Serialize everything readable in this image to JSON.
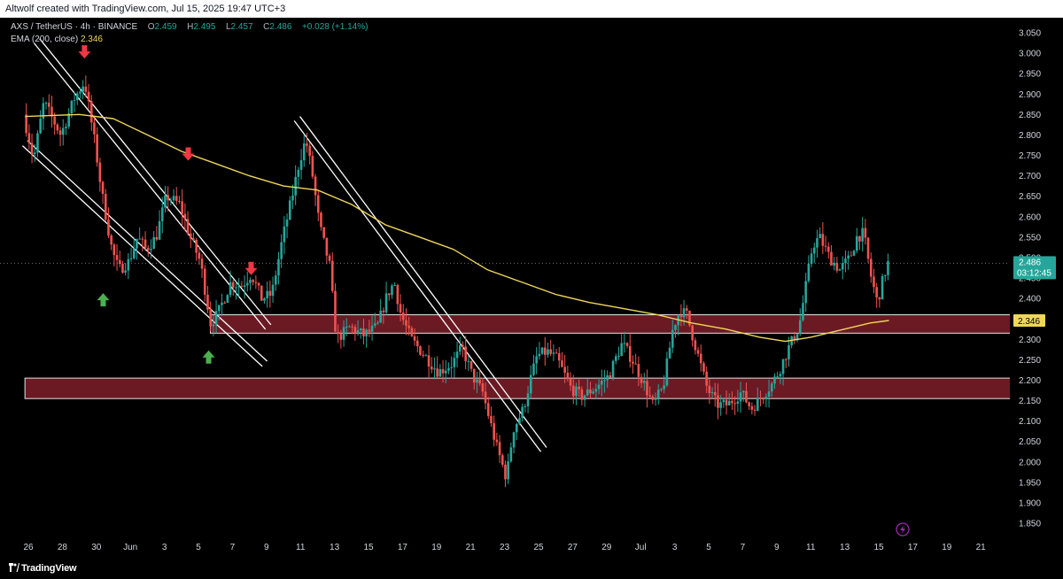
{
  "header": {
    "caption": "Altwolf created with TradingView.com, Jul 15, 2025 19:47 UTC+3"
  },
  "legend": {
    "symbol": "AXS / TetherUS · 4h · BINANCE",
    "o_label": "O",
    "o_value": "2.459",
    "h_label": "H",
    "h_value": "2.495",
    "l_label": "L",
    "l_value": "2.457",
    "c_label": "C",
    "c_value": "2.486",
    "change": "+0.028 (+1.14%)",
    "ema_label": "EMA (200, close)",
    "ema_value": "2.346"
  },
  "price_tag": {
    "price": "2.486",
    "countdown": "03:12:45",
    "color": "#26a69a"
  },
  "ema_tag": {
    "value": "2.346",
    "color": "#f0d75a"
  },
  "footer": {
    "brand": "TradingView"
  },
  "colors": {
    "up": "#26a69a",
    "down": "#ef5350",
    "ema": "#f0d75a",
    "zone": "#6b1a24",
    "arrow_down": "#f23645",
    "arrow_up": "#4caf50"
  },
  "chart_data": {
    "type": "candlestick",
    "symbol": "AXS/USDT",
    "timeframe": "4h",
    "ylim": [
      1.82,
      3.08
    ],
    "y_ticks": [
      "3.050",
      "3.000",
      "2.950",
      "2.900",
      "2.850",
      "2.800",
      "2.750",
      "2.700",
      "2.650",
      "2.600",
      "2.550",
      "2.500",
      "2.450",
      "2.400",
      "2.350",
      "2.300",
      "2.250",
      "2.200",
      "2.150",
      "2.100",
      "2.050",
      "2.000",
      "1.950",
      "1.900",
      "1.850"
    ],
    "x_ticks": [
      "26",
      "28",
      "30",
      "Jun",
      "3",
      "5",
      "7",
      "9",
      "11",
      "13",
      "15",
      "17",
      "19",
      "21",
      "23",
      "25",
      "27",
      "29",
      "Jul",
      "3",
      "5",
      "7",
      "9",
      "11",
      "13",
      "15",
      "17",
      "19",
      "21"
    ],
    "x_tick_days": [
      -5,
      -3,
      -1,
      1,
      3,
      5,
      7,
      9,
      11,
      13,
      15,
      17,
      19,
      21,
      23,
      25,
      27,
      29,
      31,
      33,
      35,
      37,
      39,
      41,
      43,
      45,
      47,
      49,
      51
    ],
    "last_day": 45.6,
    "price_path": [
      [
        -5.2,
        2.85
      ],
      [
        -4.6,
        2.74
      ],
      [
        -4,
        2.88
      ],
      [
        -3,
        2.8
      ],
      [
        -2.2,
        2.89
      ],
      [
        -1.6,
        2.93
      ],
      [
        -1,
        2.78
      ],
      [
        -0.6,
        2.66
      ],
      [
        0,
        2.52
      ],
      [
        0.4,
        2.47
      ],
      [
        1,
        2.49
      ],
      [
        1.5,
        2.55
      ],
      [
        2,
        2.52
      ],
      [
        2.6,
        2.55
      ],
      [
        3.2,
        2.65
      ],
      [
        4,
        2.63
      ],
      [
        4.6,
        2.55
      ],
      [
        5.2,
        2.49
      ],
      [
        5.8,
        2.34
      ],
      [
        6.2,
        2.36
      ],
      [
        7,
        2.44
      ],
      [
        7.6,
        2.43
      ],
      [
        8.2,
        2.46
      ],
      [
        8.8,
        2.4
      ],
      [
        9.4,
        2.41
      ],
      [
        10,
        2.54
      ],
      [
        10.6,
        2.65
      ],
      [
        11,
        2.73
      ],
      [
        11.4,
        2.79
      ],
      [
        11.8,
        2.7
      ],
      [
        12.2,
        2.58
      ],
      [
        12.8,
        2.48
      ],
      [
        13.2,
        2.3
      ],
      [
        14,
        2.33
      ],
      [
        14.8,
        2.31
      ],
      [
        15.6,
        2.33
      ],
      [
        16.2,
        2.41
      ],
      [
        16.6,
        2.44
      ],
      [
        17,
        2.36
      ],
      [
        17.6,
        2.3
      ],
      [
        18.4,
        2.26
      ],
      [
        19.2,
        2.22
      ],
      [
        20,
        2.24
      ],
      [
        20.6,
        2.28
      ],
      [
        21.2,
        2.21
      ],
      [
        21.8,
        2.17
      ],
      [
        22.6,
        2.04
      ],
      [
        23.2,
        1.96
      ],
      [
        23.6,
        2.08
      ],
      [
        24.2,
        2.13
      ],
      [
        24.6,
        2.2
      ],
      [
        25,
        2.26
      ],
      [
        25.6,
        2.27
      ],
      [
        26.2,
        2.25
      ],
      [
        27,
        2.18
      ],
      [
        27.6,
        2.16
      ],
      [
        28.4,
        2.18
      ],
      [
        29.2,
        2.21
      ],
      [
        30,
        2.29
      ],
      [
        30.6,
        2.25
      ],
      [
        31.2,
        2.2
      ],
      [
        31.8,
        2.14
      ],
      [
        32.4,
        2.18
      ],
      [
        33,
        2.33
      ],
      [
        33.4,
        2.37
      ],
      [
        33.8,
        2.36
      ],
      [
        34.4,
        2.27
      ],
      [
        35,
        2.18
      ],
      [
        35.6,
        2.14
      ],
      [
        36.2,
        2.14
      ],
      [
        37,
        2.17
      ],
      [
        37.6,
        2.13
      ],
      [
        38.2,
        2.16
      ],
      [
        38.8,
        2.19
      ],
      [
        39.2,
        2.22
      ],
      [
        39.8,
        2.28
      ],
      [
        40.4,
        2.33
      ],
      [
        40.8,
        2.43
      ],
      [
        41.2,
        2.53
      ],
      [
        41.6,
        2.55
      ],
      [
        42.2,
        2.5
      ],
      [
        42.8,
        2.47
      ],
      [
        43.4,
        2.5
      ],
      [
        43.8,
        2.55
      ],
      [
        44.2,
        2.56
      ],
      [
        44.6,
        2.46
      ],
      [
        45,
        2.39
      ],
      [
        45.3,
        2.44
      ],
      [
        45.6,
        2.486
      ]
    ],
    "ema_path": [
      [
        -5.2,
        2.845
      ],
      [
        -2,
        2.85
      ],
      [
        0,
        2.84
      ],
      [
        2,
        2.8
      ],
      [
        4,
        2.76
      ],
      [
        6,
        2.73
      ],
      [
        8,
        2.7
      ],
      [
        10,
        2.675
      ],
      [
        12,
        2.665
      ],
      [
        14,
        2.63
      ],
      [
        16,
        2.58
      ],
      [
        18,
        2.55
      ],
      [
        20,
        2.52
      ],
      [
        22,
        2.47
      ],
      [
        24,
        2.44
      ],
      [
        26,
        2.41
      ],
      [
        28,
        2.39
      ],
      [
        30,
        2.375
      ],
      [
        32,
        2.36
      ],
      [
        34,
        2.34
      ],
      [
        36,
        2.325
      ],
      [
        38,
        2.305
      ],
      [
        39.5,
        2.295
      ],
      [
        41,
        2.305
      ],
      [
        43,
        2.325
      ],
      [
        44.5,
        2.34
      ],
      [
        45.6,
        2.346
      ]
    ],
    "series": [
      {
        "name": "AXS / TetherUS",
        "type": "candlestick"
      },
      {
        "name": "EMA (200, close)",
        "type": "line",
        "last": 2.346
      }
    ],
    "zones": [
      {
        "from_day": 5.7,
        "to_day": 52.8,
        "low": 2.315,
        "high": 2.36
      },
      {
        "from_day": -5.2,
        "to_day": 52.8,
        "low": 2.155,
        "high": 2.205
      }
    ],
    "trendlines": [
      {
        "x1": -4.5,
        "y1": 3.03,
        "x2": 9.1,
        "y2": 2.33,
        "double": true
      },
      {
        "x1": -5.2,
        "y1": 2.78,
        "x2": 8.9,
        "y2": 2.24,
        "double": true
      },
      {
        "x1": 10.8,
        "y1": 2.84,
        "x2": 25.3,
        "y2": 2.03,
        "double": true
      }
    ],
    "arrows": [
      {
        "day": -1.7,
        "price": 3.0,
        "dir": "down"
      },
      {
        "day": 4.4,
        "price": 2.75,
        "dir": "down"
      },
      {
        "day": 8.1,
        "price": 2.47,
        "dir": "down"
      },
      {
        "day": -0.6,
        "price": 2.4,
        "dir": "up"
      },
      {
        "day": 5.6,
        "price": 2.26,
        "dir": "up"
      }
    ],
    "current_price": 2.486
  }
}
